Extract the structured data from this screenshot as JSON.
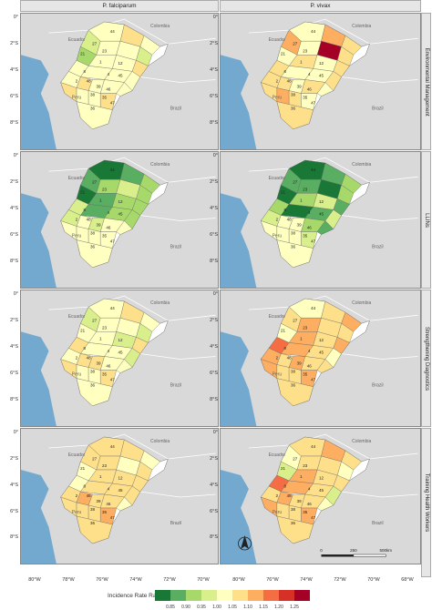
{
  "columns": [
    "P. falciparum",
    "P. vivax"
  ],
  "rows": [
    "Environmental Management",
    "LLINs",
    "Strengthening Diagnostics",
    "Training Health Workers"
  ],
  "y_ticks": [
    "0°",
    "2°S",
    "4°S",
    "6°S",
    "8°S"
  ],
  "x_ticks": [
    "80°W",
    "78°W",
    "76°W",
    "74°W",
    "72°W",
    "70°W",
    "68°W"
  ],
  "x_ticks_left": [
    "80°W",
    "78°W",
    "76°W",
    "74°W",
    "72°W",
    "70°W"
  ],
  "x_ticks_right": [
    "80°W",
    "76°W",
    "74°W",
    "72°W",
    "70°W",
    "68°W"
  ],
  "country_labels": [
    "Ecuador",
    "Colombia",
    "Peru",
    "Brazil"
  ],
  "district_labels": [
    "44",
    "27",
    "23",
    "21",
    "1",
    "12",
    "8",
    "2",
    "48",
    "4",
    "45",
    "39",
    "38",
    "35",
    "36",
    "47",
    "46"
  ],
  "scale_bar": {
    "labels": [
      "0",
      "250",
      "500km"
    ]
  },
  "legend": {
    "title": "Incidence Rate Ratio",
    "ticks": [
      "0.85",
      "0.90",
      "0.95",
      "1.00",
      "1.05",
      "1.10",
      "1.15",
      "1.20",
      "1.25"
    ],
    "colors": [
      "#1a7837",
      "#5aae61",
      "#a6d96a",
      "#d9ef8b",
      "#ffffbf",
      "#fee08b",
      "#fdae61",
      "#f46d43",
      "#d73027",
      "#a50026"
    ]
  },
  "map_colors": {
    "ocean": "#74a9cf",
    "land": "#d9d9d9",
    "border": "#ffffff"
  }
}
